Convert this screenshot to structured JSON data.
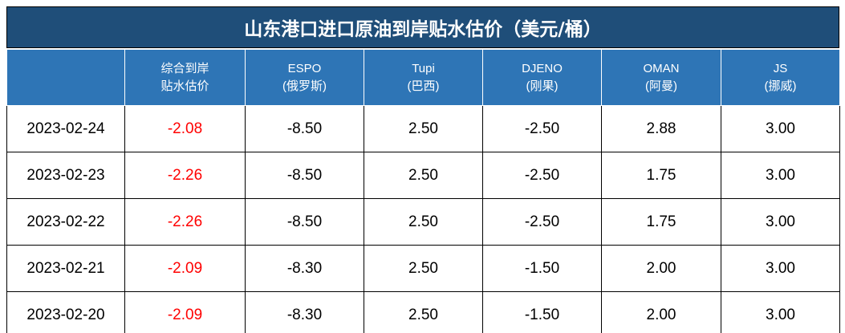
{
  "title": "山东港口进口原油到岸贴水估价（美元/桶）",
  "header": [
    [
      "综合到岸",
      "贴水估价"
    ],
    [
      "ESPO",
      "(俄罗斯)"
    ],
    [
      "Tupi",
      "(巴西)"
    ],
    [
      "DJENO",
      "(刚果)"
    ],
    [
      "OMAN",
      "(阿曼)"
    ],
    [
      "JS",
      "(挪威)"
    ]
  ],
  "rows": [
    [
      "2023-02-24",
      "-2.08",
      "-8.50",
      "2.50",
      "-2.50",
      "2.88",
      "3.00"
    ],
    [
      "2023-02-23",
      "-2.26",
      "-8.50",
      "2.50",
      "-2.50",
      "1.75",
      "3.00"
    ],
    [
      "2023-02-22",
      "-2.26",
      "-8.50",
      "2.50",
      "-2.50",
      "1.75",
      "3.00"
    ],
    [
      "2023-02-21",
      "-2.09",
      "-8.30",
      "2.50",
      "-1.50",
      "2.00",
      "3.00"
    ],
    [
      "2023-02-20",
      "-2.09",
      "-8.30",
      "2.50",
      "-1.50",
      "2.00",
      "3.00"
    ]
  ]
}
